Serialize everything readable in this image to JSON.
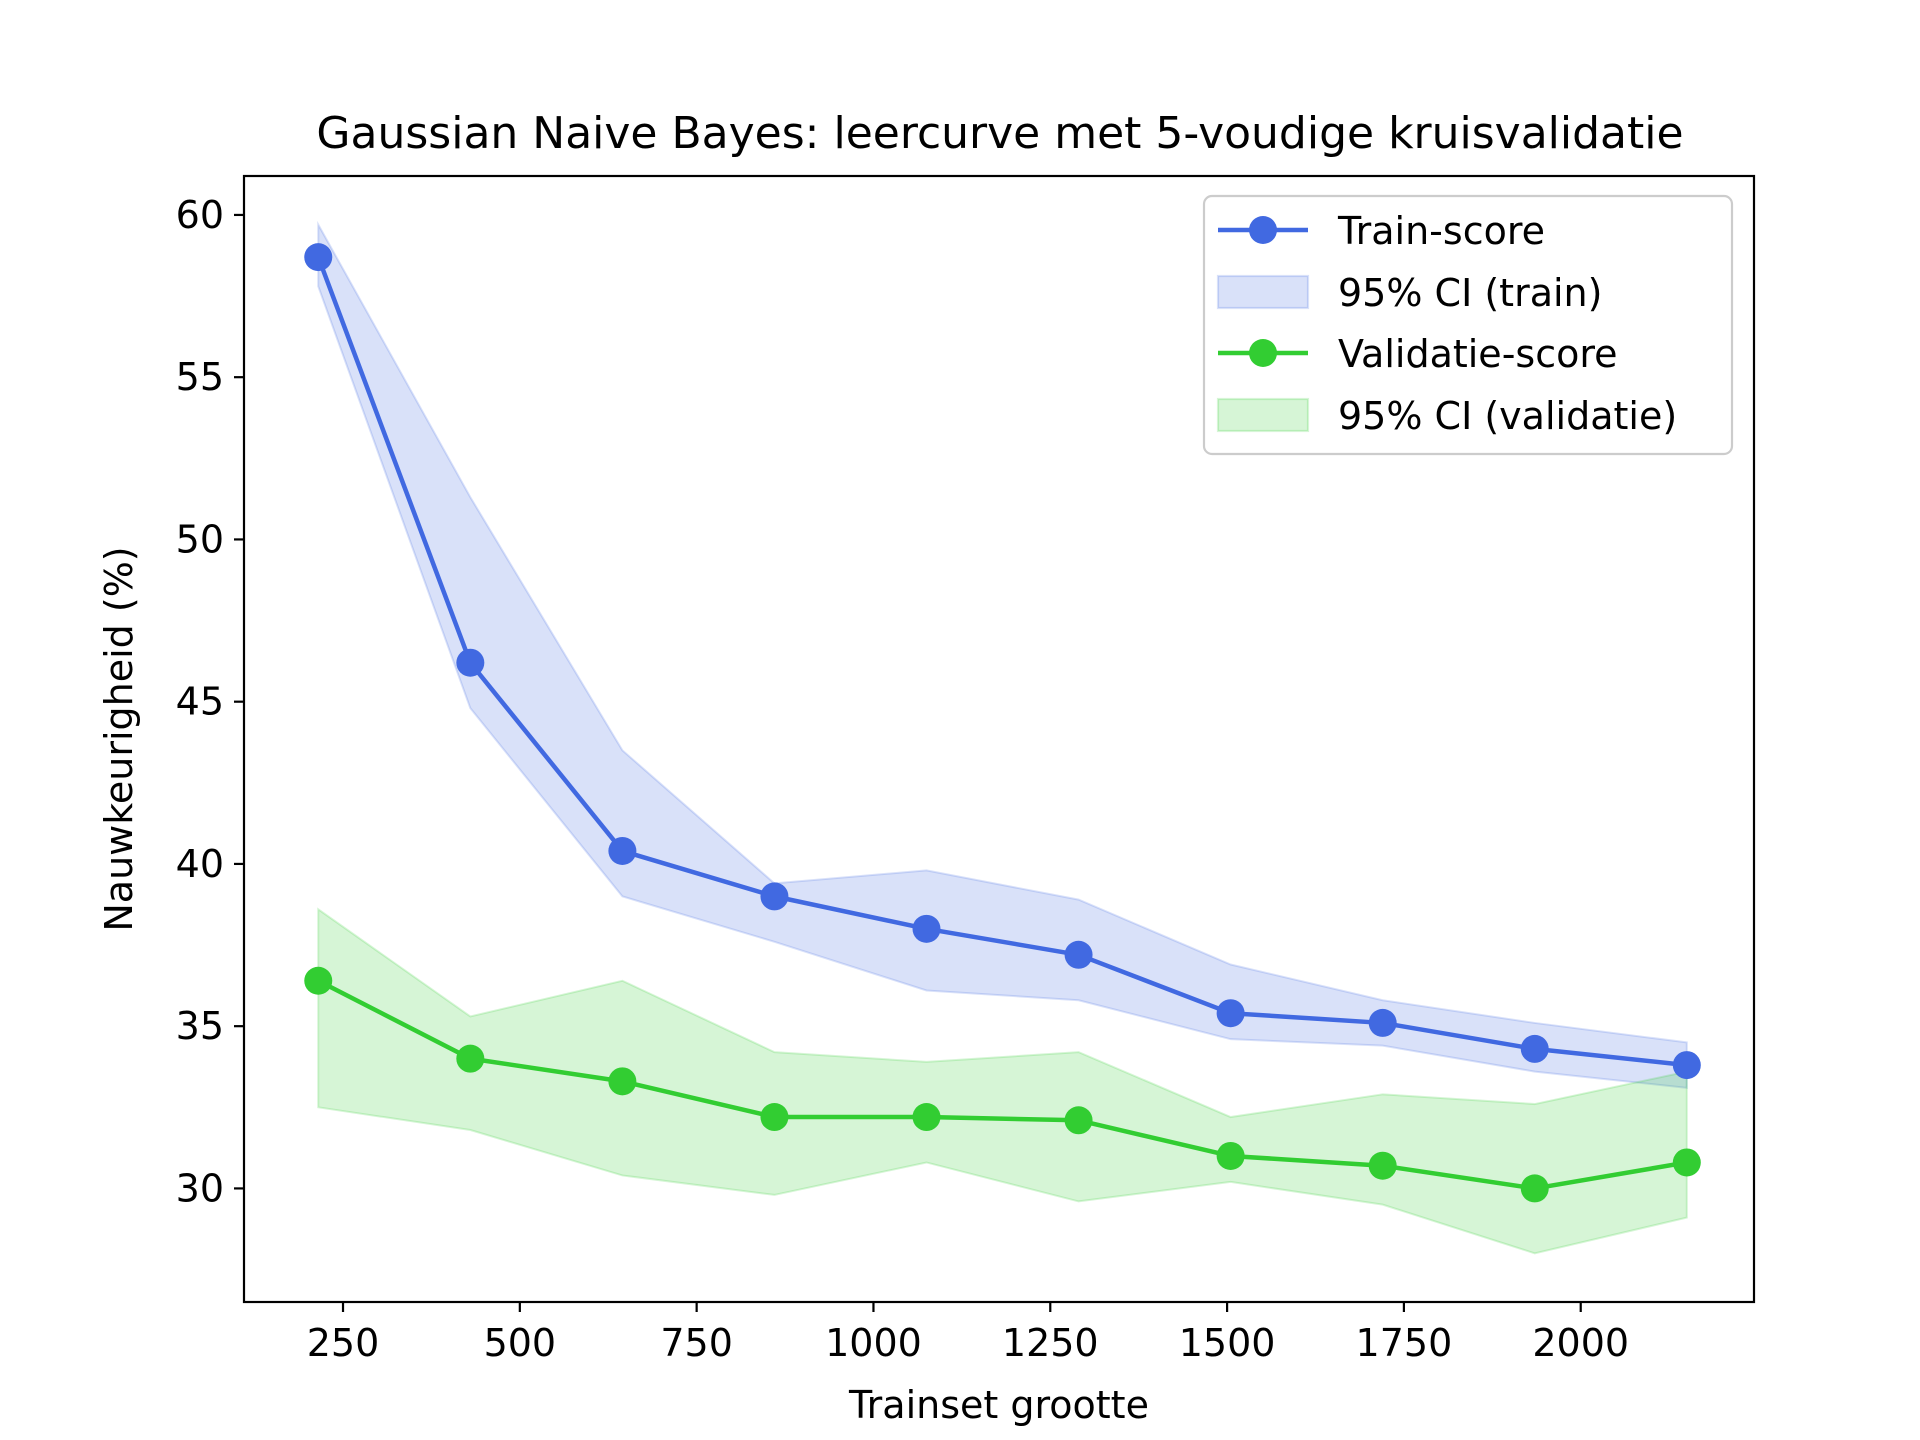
{
  "chart_data": {
    "type": "line",
    "title": "Gaussian Naive Bayes: leercurve met 5-voudige kruisvalidatie",
    "xlabel": "Trainset grootte",
    "ylabel": "Nauwkeurigheid (%)",
    "xlim": [
      110,
      2245
    ],
    "ylim": [
      26.5,
      61.2
    ],
    "xticks": [
      250,
      500,
      750,
      1000,
      1250,
      1500,
      1750,
      2000
    ],
    "xtick_labels": [
      "250",
      "500",
      "750",
      "1000",
      "1250",
      "1500",
      "1750",
      "2000"
    ],
    "yticks": [
      30,
      35,
      40,
      45,
      50,
      55,
      60
    ],
    "ytick_labels": [
      "30",
      "35",
      "40",
      "45",
      "50",
      "55",
      "60"
    ],
    "x": [
      215,
      430,
      645,
      860,
      1075,
      1290,
      1505,
      1720,
      1935,
      2150
    ],
    "series": [
      {
        "name": "Train-score",
        "color": "#4169e1",
        "values": [
          58.7,
          46.2,
          40.4,
          39.0,
          38.0,
          37.2,
          35.4,
          35.1,
          34.3,
          33.8
        ],
        "ci_name": "95% CI (train)",
        "ci_color": "#4169e1",
        "ci_lower": [
          57.8,
          44.8,
          39.0,
          37.6,
          36.1,
          35.8,
          34.6,
          34.4,
          33.6,
          33.1
        ],
        "ci_upper": [
          59.7,
          51.3,
          43.5,
          39.4,
          39.8,
          38.9,
          36.9,
          35.8,
          35.1,
          34.5
        ]
      },
      {
        "name": "Validatie-score",
        "color": "#32cd32",
        "values": [
          36.4,
          34.0,
          33.3,
          32.2,
          32.2,
          32.1,
          31.0,
          30.7,
          30.0,
          30.8
        ],
        "ci_name": "95% CI (validatie)",
        "ci_color": "#32cd32",
        "ci_lower": [
          32.5,
          31.8,
          30.4,
          29.8,
          30.8,
          29.6,
          30.2,
          29.5,
          28.0,
          29.1
        ],
        "ci_upper": [
          38.6,
          35.3,
          36.4,
          34.2,
          33.9,
          34.2,
          32.2,
          32.9,
          32.6,
          33.6
        ]
      }
    ],
    "legend": {
      "placement": "top-right",
      "entries": [
        "Train-score",
        "95% CI (train)",
        "Validatie-score",
        "95% CI (validatie)"
      ]
    },
    "grid": false
  }
}
